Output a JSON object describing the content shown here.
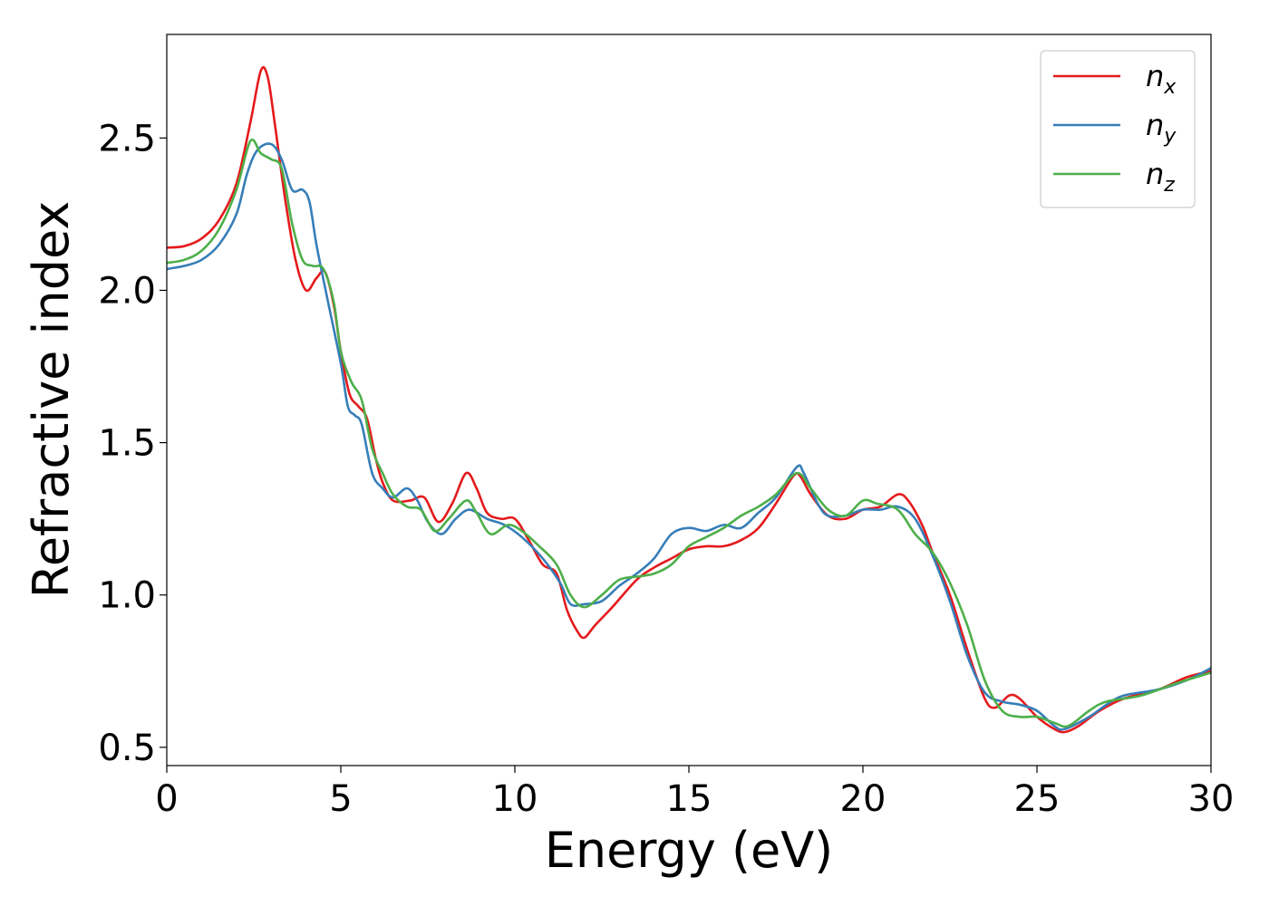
{
  "chart_data": {
    "type": "line",
    "title": "",
    "xlabel": "Energy (eV)",
    "ylabel": "Refractive index",
    "xlim": [
      0,
      30
    ],
    "ylim": [
      0.44,
      2.84
    ],
    "xticks": [
      0,
      5,
      10,
      15,
      20,
      25,
      30
    ],
    "xtick_labels": [
      "0",
      "5",
      "10",
      "15",
      "20",
      "25",
      "30"
    ],
    "yticks": [
      0.5,
      1.0,
      1.5,
      2.0,
      2.5
    ],
    "ytick_labels": [
      "0.5",
      "1.0",
      "1.5",
      "2.0",
      "2.5"
    ],
    "grid": false,
    "legend_position": "top-right",
    "series": [
      {
        "name": "n",
        "sub": "x",
        "color": "#e41a1c",
        "points": [
          [
            0,
            2.14
          ],
          [
            0.5,
            2.145
          ],
          [
            1.0,
            2.17
          ],
          [
            1.5,
            2.23
          ],
          [
            2.0,
            2.35
          ],
          [
            2.4,
            2.55
          ],
          [
            2.7,
            2.72
          ],
          [
            2.9,
            2.7
          ],
          [
            3.1,
            2.55
          ],
          [
            3.4,
            2.3
          ],
          [
            3.7,
            2.1
          ],
          [
            4.0,
            2.0
          ],
          [
            4.3,
            2.04
          ],
          [
            4.55,
            2.06
          ],
          [
            4.8,
            1.95
          ],
          [
            5.0,
            1.8
          ],
          [
            5.25,
            1.66
          ],
          [
            5.5,
            1.62
          ],
          [
            5.75,
            1.58
          ],
          [
            6.0,
            1.45
          ],
          [
            6.2,
            1.37
          ],
          [
            6.5,
            1.31
          ],
          [
            7.0,
            1.31
          ],
          [
            7.4,
            1.32
          ],
          [
            7.8,
            1.24
          ],
          [
            8.2,
            1.3
          ],
          [
            8.6,
            1.4
          ],
          [
            8.9,
            1.35
          ],
          [
            9.2,
            1.27
          ],
          [
            9.6,
            1.25
          ],
          [
            10.0,
            1.25
          ],
          [
            10.4,
            1.18
          ],
          [
            10.8,
            1.1
          ],
          [
            11.2,
            1.07
          ],
          [
            11.5,
            0.95
          ],
          [
            11.8,
            0.88
          ],
          [
            12.0,
            0.86
          ],
          [
            12.3,
            0.9
          ],
          [
            12.8,
            0.96
          ],
          [
            13.5,
            1.05
          ],
          [
            14.0,
            1.09
          ],
          [
            14.5,
            1.12
          ],
          [
            15.0,
            1.15
          ],
          [
            15.5,
            1.16
          ],
          [
            16.0,
            1.16
          ],
          [
            16.5,
            1.18
          ],
          [
            17.0,
            1.22
          ],
          [
            17.5,
            1.3
          ],
          [
            18.0,
            1.39
          ],
          [
            18.2,
            1.39
          ],
          [
            18.5,
            1.33
          ],
          [
            19.0,
            1.26
          ],
          [
            19.5,
            1.25
          ],
          [
            20.0,
            1.28
          ],
          [
            20.5,
            1.29
          ],
          [
            21.0,
            1.33
          ],
          [
            21.3,
            1.31
          ],
          [
            21.7,
            1.23
          ],
          [
            22.0,
            1.14
          ],
          [
            22.5,
            1.0
          ],
          [
            23.0,
            0.82
          ],
          [
            23.5,
            0.66
          ],
          [
            23.8,
            0.63
          ],
          [
            24.2,
            0.67
          ],
          [
            24.5,
            0.66
          ],
          [
            25.0,
            0.6
          ],
          [
            25.5,
            0.56
          ],
          [
            25.8,
            0.55
          ],
          [
            26.2,
            0.57
          ],
          [
            26.8,
            0.62
          ],
          [
            27.5,
            0.66
          ],
          [
            28.5,
            0.69
          ],
          [
            29.3,
            0.73
          ],
          [
            30.0,
            0.75
          ]
        ]
      },
      {
        "name": "n",
        "sub": "y",
        "color": "#377eb8",
        "points": [
          [
            0,
            2.07
          ],
          [
            0.5,
            2.08
          ],
          [
            1.0,
            2.1
          ],
          [
            1.5,
            2.15
          ],
          [
            2.0,
            2.25
          ],
          [
            2.3,
            2.38
          ],
          [
            2.6,
            2.46
          ],
          [
            3.0,
            2.48
          ],
          [
            3.3,
            2.43
          ],
          [
            3.6,
            2.33
          ],
          [
            3.9,
            2.33
          ],
          [
            4.1,
            2.29
          ],
          [
            4.3,
            2.15
          ],
          [
            4.6,
            1.98
          ],
          [
            5.0,
            1.76
          ],
          [
            5.2,
            1.62
          ],
          [
            5.4,
            1.59
          ],
          [
            5.6,
            1.56
          ],
          [
            5.9,
            1.4
          ],
          [
            6.2,
            1.35
          ],
          [
            6.5,
            1.32
          ],
          [
            6.9,
            1.35
          ],
          [
            7.2,
            1.31
          ],
          [
            7.5,
            1.24
          ],
          [
            7.9,
            1.2
          ],
          [
            8.3,
            1.25
          ],
          [
            8.7,
            1.28
          ],
          [
            9.2,
            1.25
          ],
          [
            9.7,
            1.23
          ],
          [
            10.2,
            1.19
          ],
          [
            10.8,
            1.12
          ],
          [
            11.3,
            1.04
          ],
          [
            11.6,
            0.97
          ],
          [
            12.0,
            0.97
          ],
          [
            12.5,
            0.98
          ],
          [
            13.0,
            1.03
          ],
          [
            13.5,
            1.07
          ],
          [
            14.0,
            1.12
          ],
          [
            14.5,
            1.2
          ],
          [
            15.0,
            1.22
          ],
          [
            15.5,
            1.21
          ],
          [
            16.0,
            1.23
          ],
          [
            16.5,
            1.22
          ],
          [
            17.0,
            1.27
          ],
          [
            17.5,
            1.32
          ],
          [
            18.1,
            1.42
          ],
          [
            18.3,
            1.4
          ],
          [
            18.7,
            1.3
          ],
          [
            19.0,
            1.26
          ],
          [
            19.5,
            1.26
          ],
          [
            20.0,
            1.28
          ],
          [
            20.5,
            1.28
          ],
          [
            21.0,
            1.29
          ],
          [
            21.5,
            1.25
          ],
          [
            22.0,
            1.13
          ],
          [
            22.5,
            0.98
          ],
          [
            23.0,
            0.8
          ],
          [
            23.5,
            0.68
          ],
          [
            24.0,
            0.65
          ],
          [
            24.5,
            0.64
          ],
          [
            25.0,
            0.62
          ],
          [
            25.5,
            0.57
          ],
          [
            25.8,
            0.56
          ],
          [
            26.5,
            0.6
          ],
          [
            27.0,
            0.64
          ],
          [
            27.5,
            0.67
          ],
          [
            28.5,
            0.69
          ],
          [
            29.3,
            0.72
          ],
          [
            30.0,
            0.76
          ]
        ]
      },
      {
        "name": "n",
        "sub": "z",
        "color": "#4daf4a",
        "points": [
          [
            0,
            2.09
          ],
          [
            0.5,
            2.1
          ],
          [
            1.0,
            2.13
          ],
          [
            1.5,
            2.2
          ],
          [
            2.0,
            2.33
          ],
          [
            2.4,
            2.49
          ],
          [
            2.7,
            2.45
          ],
          [
            3.0,
            2.43
          ],
          [
            3.3,
            2.4
          ],
          [
            3.6,
            2.22
          ],
          [
            3.9,
            2.1
          ],
          [
            4.2,
            2.08
          ],
          [
            4.5,
            2.07
          ],
          [
            4.8,
            1.96
          ],
          [
            5.0,
            1.8
          ],
          [
            5.3,
            1.7
          ],
          [
            5.6,
            1.64
          ],
          [
            5.9,
            1.48
          ],
          [
            6.2,
            1.4
          ],
          [
            6.5,
            1.33
          ],
          [
            6.9,
            1.29
          ],
          [
            7.3,
            1.28
          ],
          [
            7.7,
            1.21
          ],
          [
            8.1,
            1.25
          ],
          [
            8.6,
            1.31
          ],
          [
            8.9,
            1.27
          ],
          [
            9.3,
            1.2
          ],
          [
            9.8,
            1.23
          ],
          [
            10.2,
            1.21
          ],
          [
            10.7,
            1.16
          ],
          [
            11.2,
            1.1
          ],
          [
            11.6,
            1.0
          ],
          [
            12.0,
            0.96
          ],
          [
            12.5,
            1.0
          ],
          [
            13.0,
            1.05
          ],
          [
            13.5,
            1.06
          ],
          [
            14.0,
            1.07
          ],
          [
            14.5,
            1.1
          ],
          [
            15.0,
            1.16
          ],
          [
            15.5,
            1.19
          ],
          [
            16.0,
            1.22
          ],
          [
            16.5,
            1.26
          ],
          [
            17.0,
            1.29
          ],
          [
            17.5,
            1.33
          ],
          [
            18.1,
            1.4
          ],
          [
            18.5,
            1.35
          ],
          [
            19.0,
            1.28
          ],
          [
            19.5,
            1.26
          ],
          [
            20.0,
            1.31
          ],
          [
            20.4,
            1.3
          ],
          [
            21.0,
            1.28
          ],
          [
            21.5,
            1.2
          ],
          [
            22.0,
            1.14
          ],
          [
            22.5,
            1.04
          ],
          [
            23.0,
            0.9
          ],
          [
            23.5,
            0.72
          ],
          [
            24.0,
            0.62
          ],
          [
            24.5,
            0.6
          ],
          [
            25.0,
            0.6
          ],
          [
            25.5,
            0.58
          ],
          [
            25.9,
            0.57
          ],
          [
            26.5,
            0.62
          ],
          [
            27.0,
            0.65
          ],
          [
            28.0,
            0.67
          ],
          [
            29.0,
            0.71
          ],
          [
            30.0,
            0.745
          ]
        ]
      }
    ]
  }
}
